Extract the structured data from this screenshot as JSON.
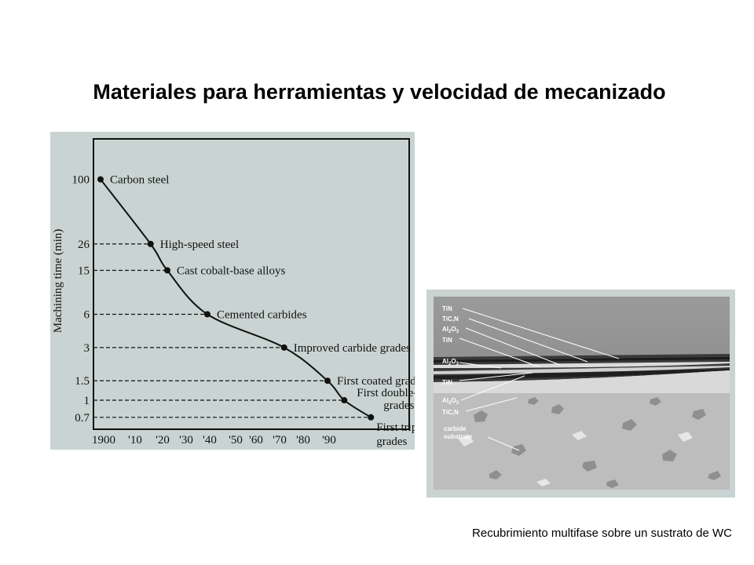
{
  "slide": {
    "title": "Materiales para herramientas y velocidad de mecanizado",
    "caption": "Recubrimiento multifase sobre un sustrato de WC"
  },
  "chart_data": {
    "type": "line",
    "title": "",
    "xlabel": "",
    "ylabel": "Machining time (min)",
    "x_tick_labels": [
      "1900",
      "'10",
      "'20",
      "'30",
      "'40",
      "'50",
      "'60",
      "'70",
      "'80",
      "'90"
    ],
    "x_ticks": [
      1900,
      1910,
      1920,
      1930,
      1940,
      1950,
      1960,
      1970,
      1980,
      1990
    ],
    "y_tick_labels": [
      "100",
      "26",
      "15",
      "6",
      "3",
      "1.5",
      "1",
      "0.7"
    ],
    "y_ticks": [
      100,
      26,
      15,
      6,
      3,
      1.5,
      1,
      0.7
    ],
    "y_scale": "log",
    "xlim": [
      1900,
      1992
    ],
    "ylim": [
      0.4,
      140
    ],
    "grid": false,
    "leader_lines": "dashed",
    "points": [
      {
        "year": 1900,
        "time": 100,
        "label": "Carbon steel"
      },
      {
        "year": 1915,
        "time": 26,
        "label": "High-speed steel"
      },
      {
        "year": 1920,
        "time": 15,
        "label": "Cast cobalt-base alloys"
      },
      {
        "year": 1932,
        "time": 6,
        "label": "Cemented carbides"
      },
      {
        "year": 1955,
        "time": 3,
        "label": "Improved carbide grades"
      },
      {
        "year": 1968,
        "time": 1.5,
        "label": "First coated grades"
      },
      {
        "year": 1973,
        "time": 1,
        "label": "First double-coated grades"
      },
      {
        "year": 1981,
        "time": 0.7,
        "label": "First triple-coated grades"
      }
    ],
    "colors": {
      "panel": "#c9d4d2",
      "ink": "#111111"
    }
  },
  "micrograph": {
    "labels": [
      "TiN",
      "TiC,N",
      "Al2O3",
      "TiN",
      "Al2O3",
      "TiN",
      "Al2O3",
      "TiC,N",
      "carbide substrate"
    ],
    "colors": {
      "border": "#c9d3d1",
      "top": "#8e8e8e",
      "band": "#2a2a2a",
      "substrate": "#bdbdbd"
    }
  }
}
